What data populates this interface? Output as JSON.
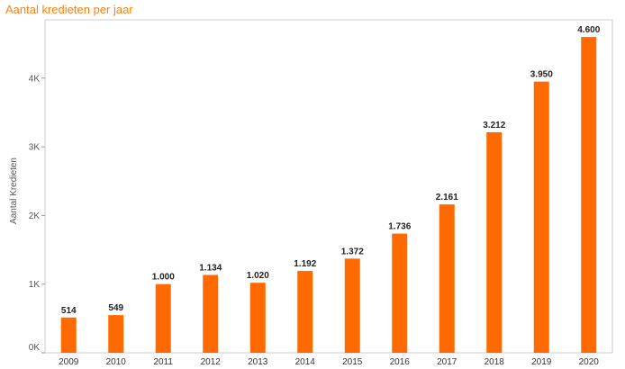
{
  "chart_data": {
    "type": "bar",
    "title": "Aantal kredieten per jaar",
    "ylabel": "Aantal Kredieten",
    "xlabel": "",
    "categories": [
      "2009",
      "2010",
      "2011",
      "2012",
      "2013",
      "2014",
      "2015",
      "2016",
      "2017",
      "2018",
      "2019",
      "2020"
    ],
    "values": [
      514,
      549,
      1000,
      1134,
      1020,
      1192,
      1372,
      1736,
      2161,
      3212,
      3950,
      4600
    ],
    "data_labels": [
      "514",
      "549",
      "1.000",
      "1.134",
      "1.020",
      "1.192",
      "1.372",
      "1.736",
      "2.161",
      "3.212",
      "3.950",
      "4.600"
    ],
    "yticks": [
      0,
      1000,
      2000,
      3000,
      4000
    ],
    "ytick_labels": [
      "0K",
      "1K",
      "2K",
      "3K",
      "4K"
    ],
    "ylim": [
      0,
      4850
    ],
    "grid": false,
    "legend": "none",
    "colors": {
      "bar": "#ff6a00",
      "title": "#ff7f0e",
      "axis": "#cccccc"
    }
  }
}
